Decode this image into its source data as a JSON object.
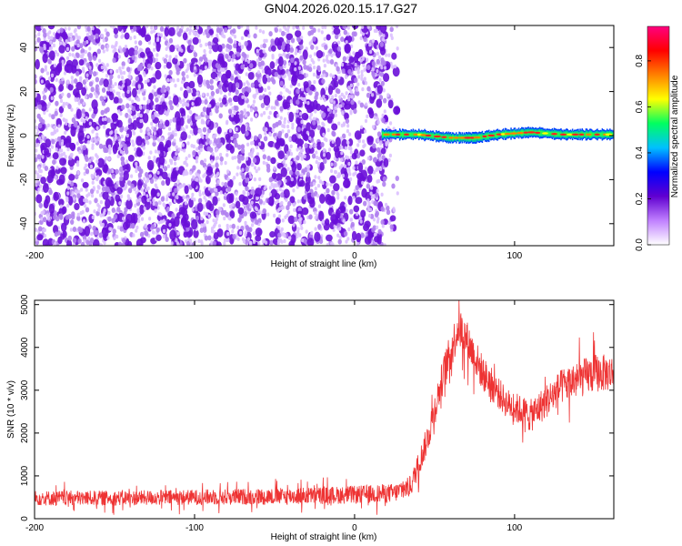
{
  "title": "GN04.2026.020.15.17.G27",
  "chart_data": [
    {
      "type": "heatmap",
      "title": "GN04.2026.020.15.17.G27",
      "xlabel": "Height of straight line (km)",
      "ylabel": "Frequency (Hz)",
      "xlim": [
        -200,
        162
      ],
      "ylim": [
        -50,
        50
      ],
      "x_ticks": [
        -200,
        -100,
        0,
        100
      ],
      "y_ticks": [
        -40,
        -20,
        0,
        20,
        40
      ],
      "colorbar": {
        "label": "Normalized spectral amplitude",
        "range": [
          0,
          0.95
        ],
        "ticks": [
          0,
          0.2,
          0.4,
          0.6,
          0.8
        ],
        "colors": [
          "#ffffff",
          "#c080ff",
          "#6000d0",
          "#0000ff",
          "#00c0ff",
          "#00ff60",
          "#ffff00",
          "#ff8000",
          "#ff0000",
          "#ff0080"
        ]
      },
      "regions": [
        {
          "x_range": [
            -200,
            27
          ],
          "freq_range": [
            -50,
            50
          ],
          "description": "broadband noise",
          "amplitude_range": [
            0,
            0.15
          ]
        },
        {
          "x_range": [
            17,
            162
          ],
          "center_freq": [
            [
              17,
              0.5
            ],
            [
              40,
              0.5
            ],
            [
              60,
              -1
            ],
            [
              75,
              -1
            ],
            [
              90,
              0.5
            ],
            [
              110,
              1.5
            ],
            [
              130,
              0.5
            ],
            [
              162,
              0.5
            ]
          ],
          "amplitude_range": [
            0.3,
            0.9
          ]
        }
      ]
    },
    {
      "type": "line",
      "xlabel": "Height of straight line (km)",
      "ylabel": "SNR (10 * v/v)",
      "xlim": [
        -200,
        162
      ],
      "ylim": [
        0,
        5100
      ],
      "x_ticks": [
        -200,
        -100,
        0,
        100
      ],
      "y_ticks": [
        0,
        1000,
        2000,
        3000,
        4000,
        5000
      ],
      "color": "#ee3333",
      "x": [
        -200,
        -150,
        -100,
        -50,
        0,
        25,
        35,
        45,
        55,
        65,
        70,
        80,
        95,
        110,
        130,
        150,
        162
      ],
      "y": [
        480,
        480,
        500,
        520,
        560,
        600,
        750,
        1800,
        3300,
        4500,
        4200,
        3400,
        2700,
        2400,
        3100,
        3400,
        3400
      ],
      "noise_amplitude": [
        250,
        250,
        260,
        280,
        300,
        320,
        350,
        500,
        600,
        700,
        650,
        600,
        500,
        550,
        600,
        650,
        600
      ]
    }
  ]
}
